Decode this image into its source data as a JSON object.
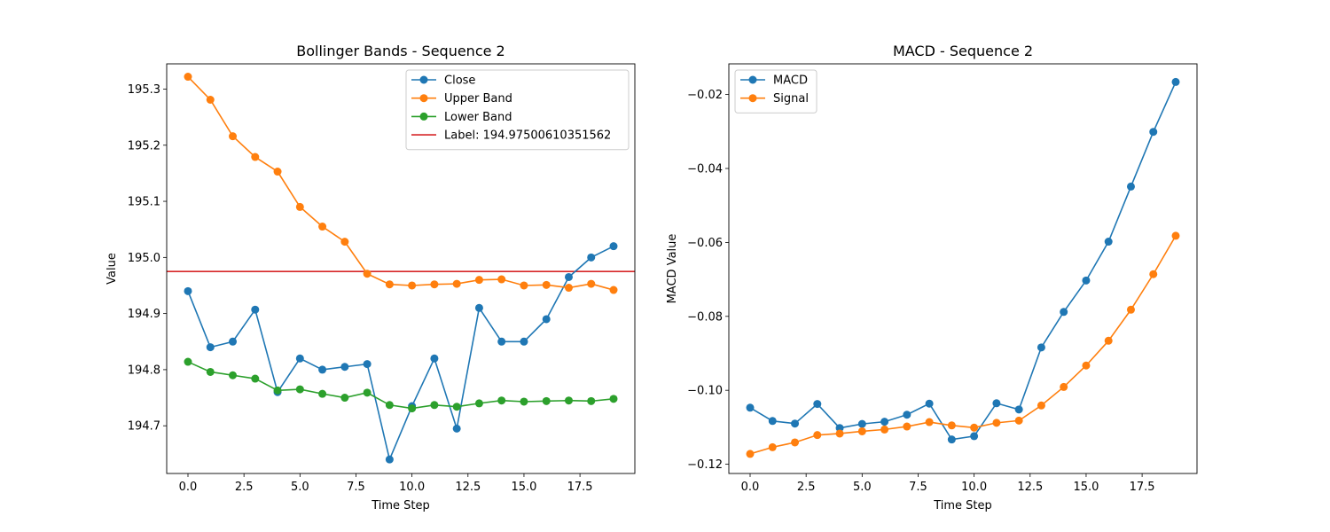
{
  "chart_data": [
    {
      "type": "line",
      "title": "Bollinger Bands - Sequence 2",
      "xlabel": "Time Step",
      "ylabel": "Value",
      "xlim": [
        -0.95,
        19.95
      ],
      "ylim": [
        194.615,
        195.345
      ],
      "xticks": [
        0,
        2.5,
        5,
        7.5,
        10,
        12.5,
        15,
        17.5
      ],
      "xtick_labels": [
        "0.0",
        "2.5",
        "5.0",
        "7.5",
        "10.0",
        "12.5",
        "15.0",
        "17.5"
      ],
      "yticks": [
        194.7,
        194.8,
        194.9,
        195.0,
        195.1,
        195.2,
        195.3
      ],
      "ytick_labels": [
        "194.7",
        "194.8",
        "194.9",
        "195.0",
        "195.1",
        "195.2",
        "195.3"
      ],
      "legend_position": "top-right",
      "grid": false,
      "x": [
        0,
        1,
        2,
        3,
        4,
        5,
        6,
        7,
        8,
        9,
        10,
        11,
        12,
        13,
        14,
        15,
        16,
        17,
        18,
        19
      ],
      "series": [
        {
          "name": "Close",
          "color": "#1f77b4",
          "marker": true,
          "values": [
            194.94,
            194.84,
            194.85,
            194.907,
            194.76,
            194.82,
            194.8,
            194.805,
            194.81,
            194.64,
            194.735,
            194.82,
            194.695,
            194.91,
            194.85,
            194.85,
            194.89,
            194.965,
            195.0,
            195.02
          ]
        },
        {
          "name": "Upper Band",
          "color": "#ff7f0e",
          "marker": true,
          "values": [
            195.322,
            195.281,
            195.216,
            195.179,
            195.153,
            195.09,
            195.055,
            195.028,
            194.971,
            194.952,
            194.95,
            194.952,
            194.953,
            194.96,
            194.961,
            194.95,
            194.951,
            194.946,
            194.953,
            194.942
          ]
        },
        {
          "name": "Lower Band",
          "color": "#2ca02c",
          "marker": true,
          "values": [
            194.814,
            194.796,
            194.79,
            194.784,
            194.763,
            194.765,
            194.757,
            194.75,
            194.759,
            194.737,
            194.731,
            194.737,
            194.734,
            194.74,
            194.745,
            194.743,
            194.744,
            194.745,
            194.744,
            194.748
          ]
        }
      ],
      "hlines": [
        {
          "name": "Label: 194.97500610351562",
          "value": 194.97500610351562,
          "color": "#d62728"
        }
      ]
    },
    {
      "type": "line",
      "title": "MACD - Sequence 2",
      "xlabel": "Time Step",
      "ylabel": "MACD Value",
      "xlim": [
        -0.95,
        19.95
      ],
      "ylim": [
        -0.1225,
        -0.0117
      ],
      "xticks": [
        0,
        2.5,
        5,
        7.5,
        10,
        12.5,
        15,
        17.5
      ],
      "xtick_labels": [
        "0.0",
        "2.5",
        "5.0",
        "7.5",
        "10.0",
        "12.5",
        "15.0",
        "17.5"
      ],
      "yticks": [
        -0.12,
        -0.1,
        -0.08,
        -0.06,
        -0.04,
        -0.02
      ],
      "ytick_labels": [
        "−0.12",
        "−0.10",
        "−0.08",
        "−0.06",
        "−0.04",
        "−0.02"
      ],
      "legend_position": "top-left",
      "grid": false,
      "x": [
        0,
        1,
        2,
        3,
        4,
        5,
        6,
        7,
        8,
        9,
        10,
        11,
        12,
        13,
        14,
        15,
        16,
        17,
        18,
        19
      ],
      "series": [
        {
          "name": "MACD",
          "color": "#1f77b4",
          "marker": true,
          "values": [
            -0.1047,
            -0.1083,
            -0.109,
            -0.1037,
            -0.1102,
            -0.1091,
            -0.1085,
            -0.1066,
            -0.1036,
            -0.1133,
            -0.1124,
            -0.1035,
            -0.1052,
            -0.0884,
            -0.0788,
            -0.0703,
            -0.0598,
            -0.0449,
            -0.0301,
            -0.0166
          ]
        },
        {
          "name": "Signal",
          "color": "#ff7f0e",
          "marker": true,
          "values": [
            -0.1172,
            -0.1154,
            -0.1141,
            -0.1121,
            -0.1117,
            -0.1111,
            -0.1106,
            -0.1098,
            -0.1086,
            -0.1095,
            -0.1101,
            -0.1088,
            -0.1082,
            -0.1041,
            -0.0991,
            -0.0933,
            -0.0866,
            -0.0782,
            -0.0686,
            -0.0582
          ]
        }
      ],
      "hlines": []
    }
  ]
}
